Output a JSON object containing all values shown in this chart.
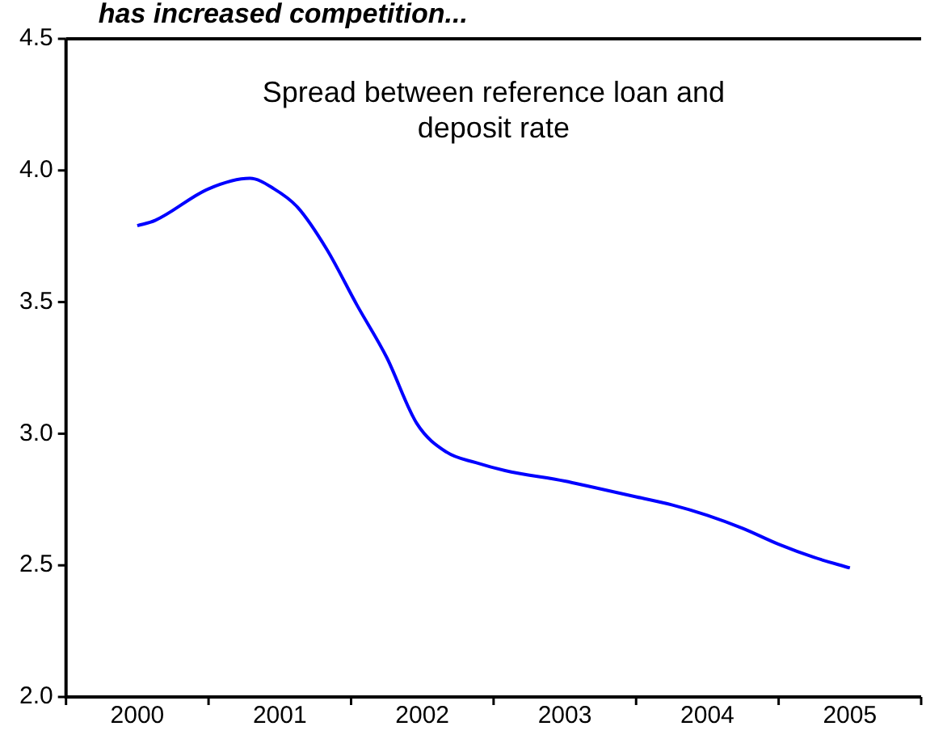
{
  "chart_data": {
    "type": "line",
    "title": "has increased competition...",
    "subtitle": "Spread between reference loan and deposit rate",
    "series": [
      {
        "color": "#0000ff",
        "x": [
          2000.0,
          2000.125,
          2000.5,
          2000.79,
          2000.96,
          2001.125,
          2001.33,
          2001.54,
          2001.75,
          2001.96,
          2002.17,
          2002.375,
          2002.58,
          2003.0,
          2003.17,
          2003.5,
          2003.75,
          2004.0,
          2004.25,
          2004.5,
          2004.75,
          2005.0
        ],
        "values": [
          3.79,
          3.81,
          3.93,
          3.97,
          3.93,
          3.86,
          3.7,
          3.49,
          3.29,
          3.04,
          2.93,
          2.89,
          2.86,
          2.82,
          2.8,
          2.76,
          2.73,
          2.69,
          2.64,
          2.58,
          2.53,
          2.49
        ]
      }
    ],
    "xlim": [
      1999.5,
      2005.5
    ],
    "xticks": [
      {
        "value": 1999.5,
        "label": null
      },
      2000,
      {
        "value": 2000.5,
        "label": null
      },
      2001,
      {
        "value": 2001.5,
        "label": null
      },
      2002,
      {
        "value": 2002.5,
        "label": null
      },
      2003,
      {
        "value": 2003.5,
        "label": null
      },
      2004,
      {
        "value": 2004.5,
        "label": null
      },
      2005,
      {
        "value": 2005.5,
        "label": null
      }
    ],
    "ylim": [
      2.0,
      4.5
    ],
    "yticks": [
      {
        "value": 2.0,
        "label": "2.0"
      },
      {
        "value": 2.5,
        "label": "2.5"
      },
      {
        "value": 3.0,
        "label": "3.0"
      },
      {
        "value": 3.5,
        "label": "3.5"
      },
      {
        "value": 4.0,
        "label": "4.0"
      },
      {
        "value": 4.5,
        "label": "4.5"
      }
    ],
    "grid": false,
    "legend": false,
    "marker": "none",
    "line_style": "solid"
  }
}
